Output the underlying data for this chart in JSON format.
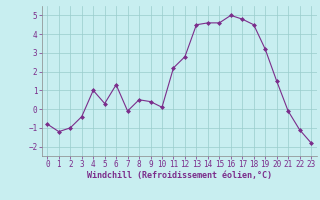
{
  "x": [
    0,
    1,
    2,
    3,
    4,
    5,
    6,
    7,
    8,
    9,
    10,
    11,
    12,
    13,
    14,
    15,
    16,
    17,
    18,
    19,
    20,
    21,
    22,
    23
  ],
  "y": [
    -0.8,
    -1.2,
    -1.0,
    -0.4,
    1.0,
    0.3,
    1.3,
    -0.1,
    0.5,
    0.4,
    0.1,
    2.2,
    2.8,
    4.5,
    4.6,
    4.6,
    5.0,
    4.8,
    4.5,
    3.2,
    1.5,
    -0.1,
    -1.1,
    -1.8
  ],
  "line_color": "#7b2d8b",
  "marker": "D",
  "marker_size": 2.0,
  "bg_color": "#c8eef0",
  "grid_color": "#99cccc",
  "xlabel": "Windchill (Refroidissement éolien,°C)",
  "xlabel_color": "#7b2d8b",
  "tick_color": "#7b2d8b",
  "ylim": [
    -2.5,
    5.5
  ],
  "xlim": [
    -0.5,
    23.5
  ],
  "yticks": [
    -2,
    -1,
    0,
    1,
    2,
    3,
    4,
    5
  ],
  "xticks": [
    0,
    1,
    2,
    3,
    4,
    5,
    6,
    7,
    8,
    9,
    10,
    11,
    12,
    13,
    14,
    15,
    16,
    17,
    18,
    19,
    20,
    21,
    22,
    23
  ],
  "tick_fontsize": 5.5,
  "xlabel_fontsize": 6.0
}
